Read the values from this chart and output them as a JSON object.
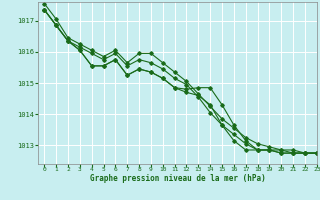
{
  "title": "Graphe pression niveau de la mer (hPa)",
  "bg_color": "#c8eef0",
  "grid_color": "#ffffff",
  "line_color": "#1a6b1a",
  "xlim": [
    -0.5,
    23
  ],
  "ylim": [
    1012.4,
    1017.6
  ],
  "yticks": [
    1013,
    1014,
    1015,
    1016,
    1017
  ],
  "xticks": [
    0,
    1,
    2,
    3,
    4,
    5,
    6,
    7,
    8,
    9,
    10,
    11,
    12,
    13,
    14,
    15,
    16,
    17,
    18,
    19,
    20,
    21,
    22,
    23
  ],
  "series": [
    [
      1017.35,
      1016.85,
      1016.35,
      1016.05,
      1015.55,
      1015.55,
      1015.75,
      1015.25,
      1015.45,
      1015.35,
      1015.15,
      1014.85,
      1014.8,
      1014.85,
      1014.85,
      1014.3,
      1013.65,
      1013.15,
      1012.85,
      1012.85,
      1012.85,
      1012.75,
      1012.75,
      1012.75
    ],
    [
      1017.35,
      1016.85,
      1016.35,
      1016.05,
      1015.55,
      1015.55,
      1015.75,
      1015.25,
      1015.45,
      1015.35,
      1015.15,
      1014.85,
      1014.7,
      1014.6,
      1014.3,
      1013.65,
      1013.15,
      1012.85,
      1012.85,
      1012.85,
      1012.75,
      1012.75,
      1012.75,
      1012.75
    ],
    [
      1017.35,
      1016.85,
      1016.35,
      1016.15,
      1015.95,
      1015.75,
      1015.95,
      1015.55,
      1015.75,
      1015.65,
      1015.45,
      1015.15,
      1014.95,
      1014.55,
      1014.05,
      1013.65,
      1013.35,
      1013.05,
      1012.85,
      1012.85,
      1012.75,
      1012.75,
      1012.75,
      1012.75
    ],
    [
      1017.55,
      1017.05,
      1016.45,
      1016.25,
      1016.05,
      1015.85,
      1016.05,
      1015.65,
      1015.95,
      1015.95,
      1015.65,
      1015.35,
      1015.05,
      1014.65,
      1014.25,
      1013.85,
      1013.55,
      1013.25,
      1013.05,
      1012.95,
      1012.85,
      1012.85,
      1012.75,
      1012.75
    ]
  ]
}
